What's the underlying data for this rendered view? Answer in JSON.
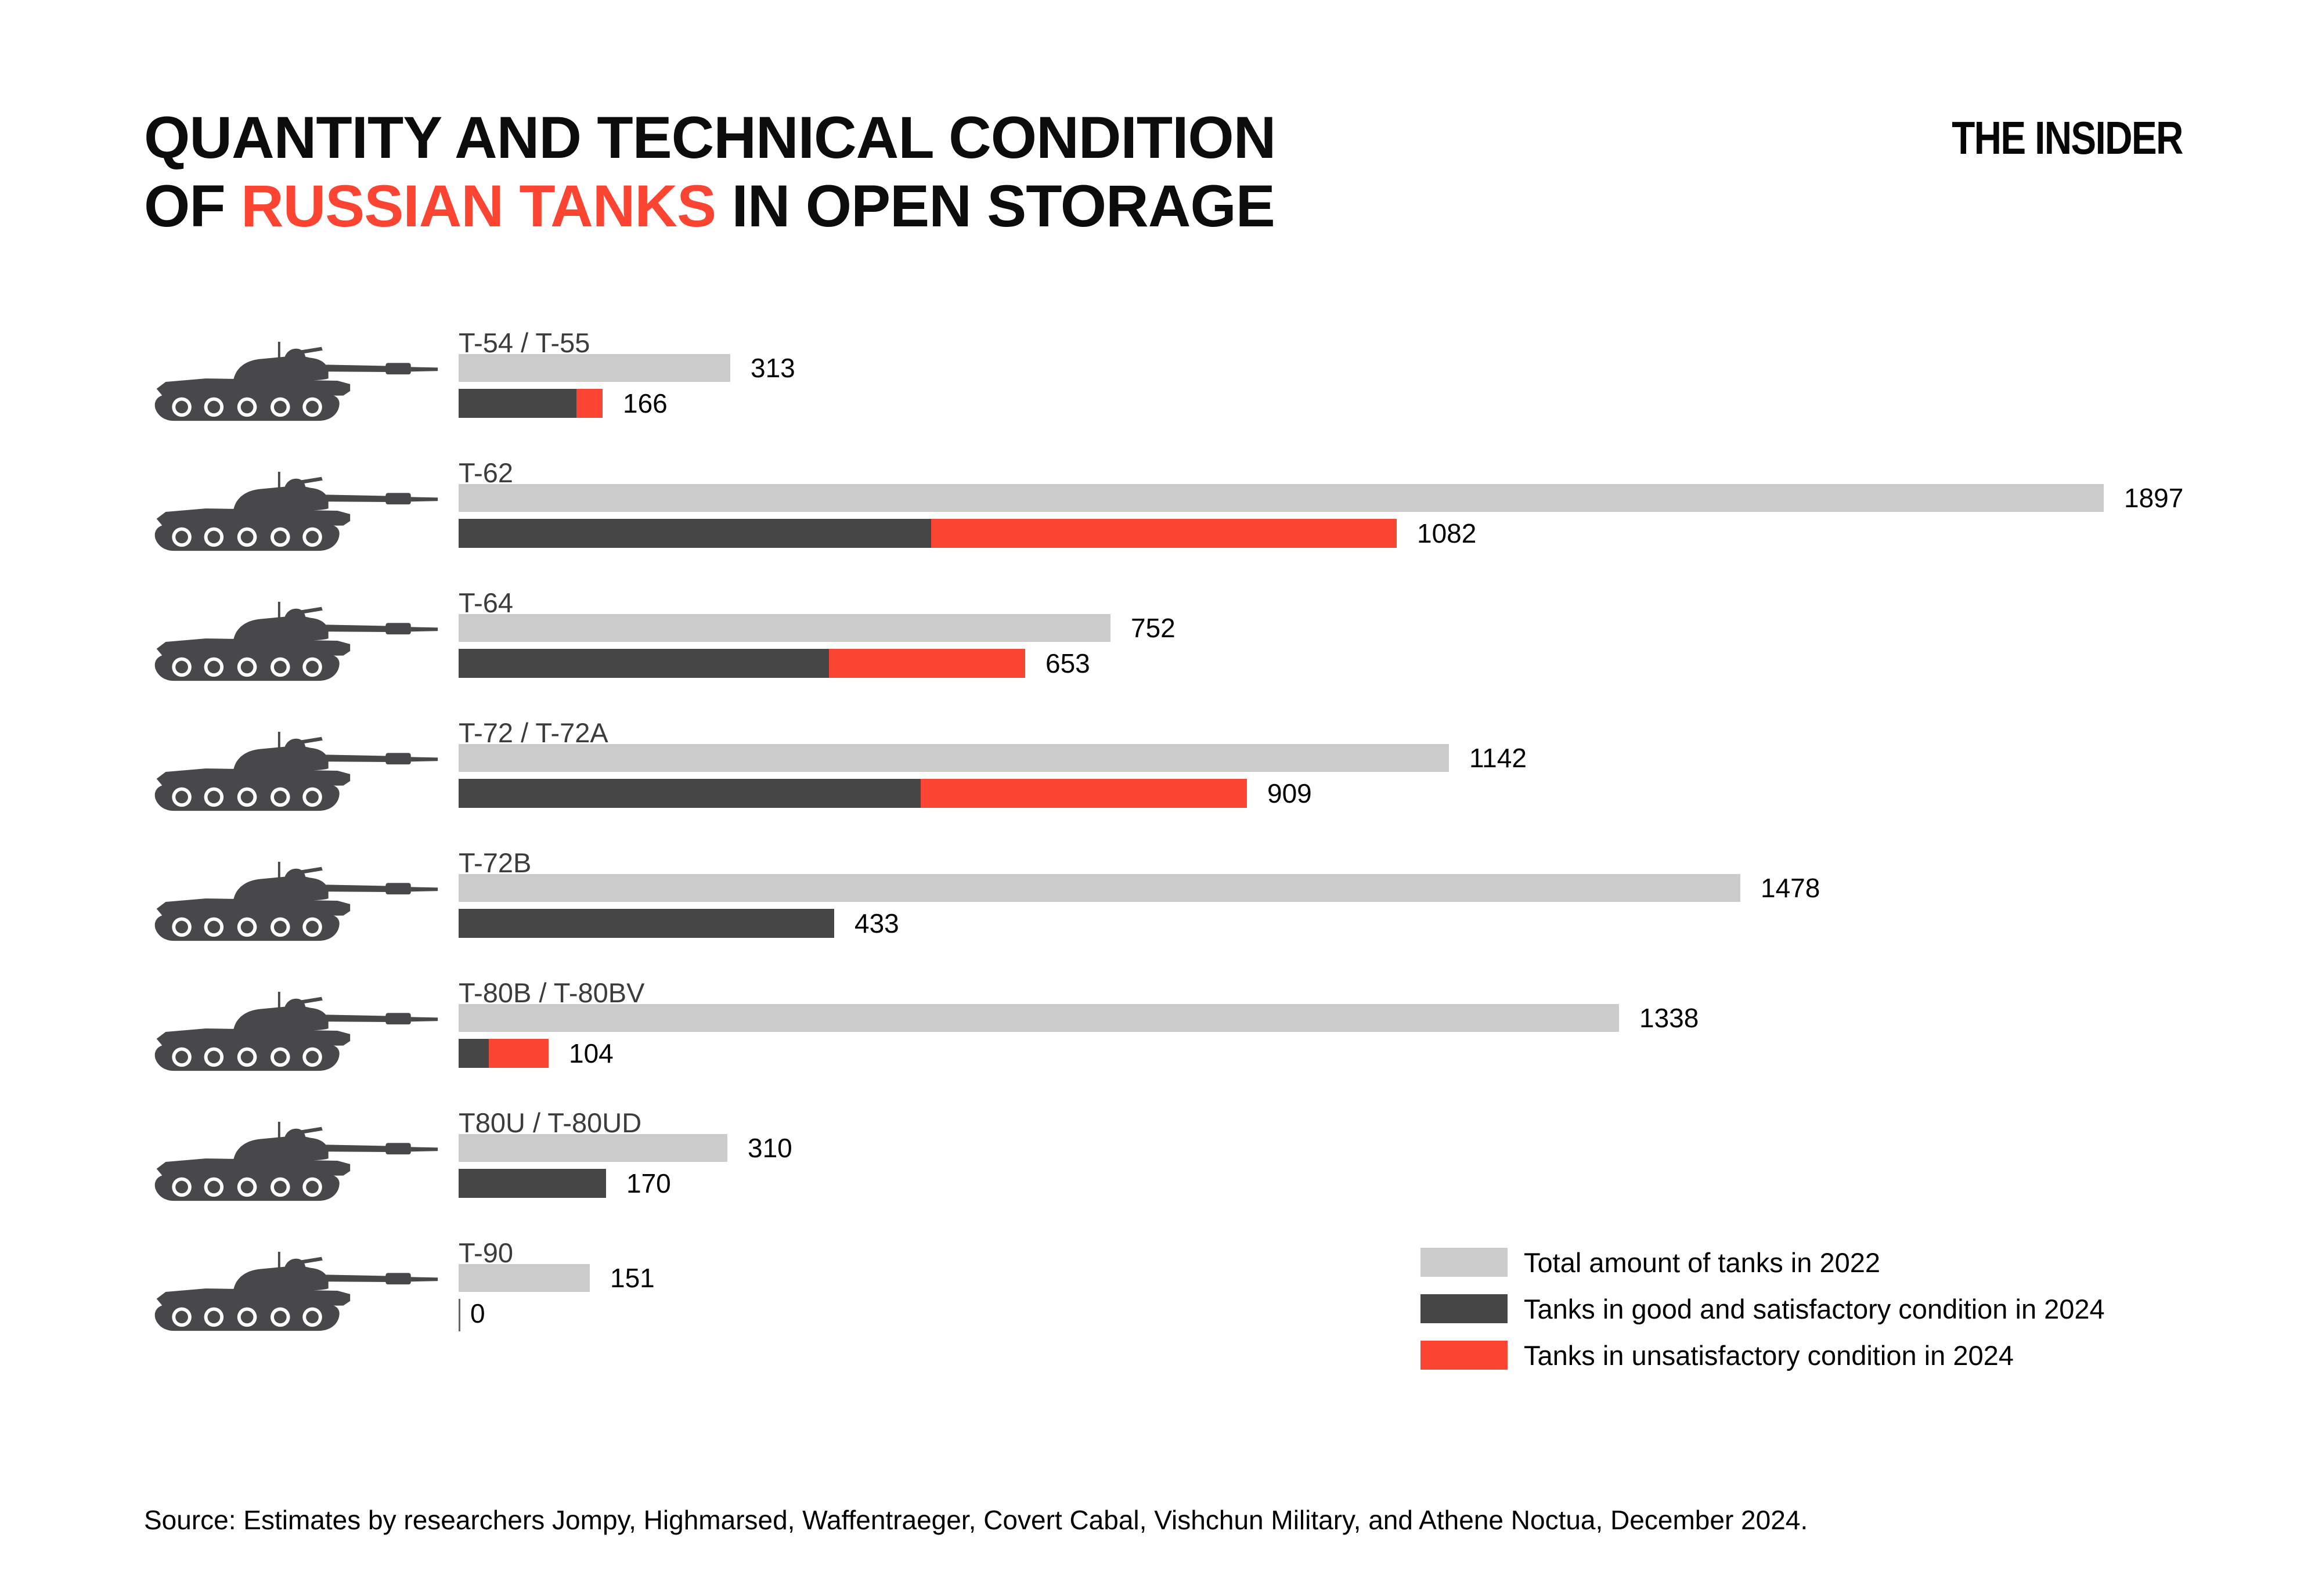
{
  "title": {
    "line1": "QUANTITY AND TECHNICAL CONDITION",
    "line2_prefix": "OF ",
    "line2_highlight": "RUSSIAN TANKS",
    "line2_suffix": " IN OPEN STORAGE"
  },
  "logo": "THE INSIDER",
  "colors": {
    "total_2022": "#cbcbcb",
    "good_2024": "#464646",
    "unsat_2024": "#fb4532",
    "title_accent": "#fb4532",
    "tank_silhouette": "#48484b",
    "category_label": "#3c3c3c",
    "value_label": "#000000",
    "background": "#ffffff"
  },
  "legend": {
    "items": [
      {
        "key": "total_2022",
        "label": "Total amount of tanks in 2022"
      },
      {
        "key": "good_2024",
        "label": "Tanks in good and satisfactory condition in 2024"
      },
      {
        "key": "unsat_2024",
        "label": "Tanks in unsatisfactory condition in 2024"
      }
    ]
  },
  "source": "Source: Estimates by researchers Jompy, Highmarsed, Waffentraeger, Covert Cabal, Vishchun Military, and Athene Noctua, December 2024.",
  "chart_data": {
    "type": "bar",
    "orientation": "horizontal",
    "title": "Quantity and technical condition of Russian tanks in open storage",
    "categories": [
      "T-54 / T-55",
      "T-62",
      "T-64",
      "T-72 / T-72A",
      "T-72B",
      "T-80B / T-80BV",
      "T80U / T-80UD",
      "T-90"
    ],
    "series": [
      {
        "name": "Total amount of tanks in 2022",
        "values": [
          313,
          1897,
          752,
          1142,
          1478,
          1338,
          310,
          151
        ]
      },
      {
        "name": "Tanks in good and satisfactory condition in 2024",
        "values": [
          136,
          545,
          427,
          533,
          433,
          35,
          170,
          0
        ]
      },
      {
        "name": "Tanks in unsatisfactory condition in 2024",
        "values": [
          30,
          537,
          226,
          376,
          0,
          69,
          0,
          0
        ]
      }
    ],
    "condition_2024_totals": [
      166,
      1082,
      653,
      909,
      433,
      104,
      170,
      0
    ],
    "value_labels_shown": true,
    "xlim": [
      0,
      1897
    ],
    "grid": false,
    "legend_position": "bottom-right"
  }
}
